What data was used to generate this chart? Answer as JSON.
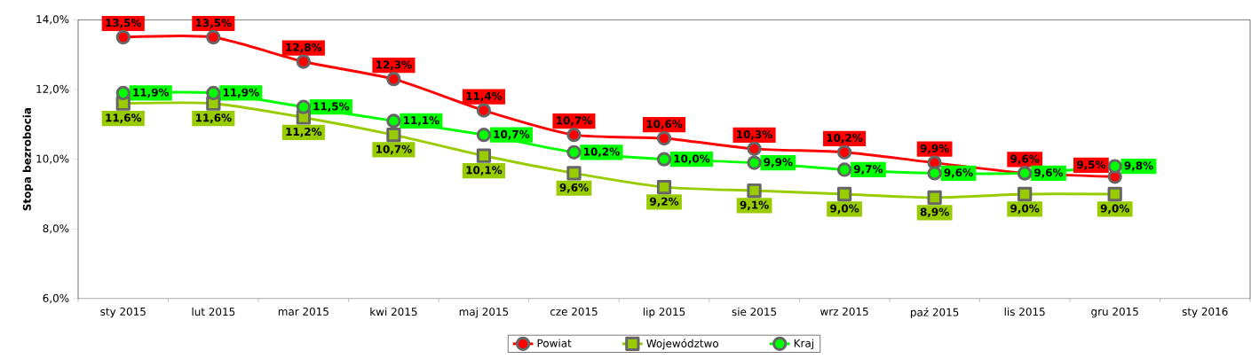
{
  "chart_data": {
    "type": "line",
    "ylabel": "Stopa bezrobocia",
    "legend": "bottom",
    "categories": [
      "sty 2015",
      "lut 2015",
      "mar 2015",
      "kwi 2015",
      "maj 2015",
      "cze 2015",
      "lip 2015",
      "sie 2015",
      "wrz 2015",
      "paź 2015",
      "lis 2015",
      "gru 2015",
      "sty 2016"
    ],
    "ylim": [
      6,
      14
    ],
    "yticks": [
      {
        "value": 6,
        "label": "6,0%"
      },
      {
        "value": 8,
        "label": "8,0%"
      },
      {
        "value": 10,
        "label": "10,0%"
      },
      {
        "value": 12,
        "label": "12,0%"
      },
      {
        "value": 14,
        "label": "14,0%"
      }
    ],
    "series": [
      {
        "name": "Powiat",
        "color": "#ff0000",
        "marker": "circle",
        "values": [
          13.5,
          13.5,
          12.8,
          12.3,
          11.4,
          10.7,
          10.6,
          10.3,
          10.2,
          9.9,
          9.6,
          9.5,
          null
        ],
        "value_labels": [
          "13,5%",
          "13,5%",
          "12,8%",
          "12,3%",
          "11,4%",
          "10,7%",
          "10,6%",
          "10,3%",
          "10,2%",
          "9,9%",
          "9,6%",
          "9,5%",
          null
        ]
      },
      {
        "name": "Województwo",
        "color": "#99cc00",
        "marker": "square",
        "values": [
          11.6,
          11.6,
          11.2,
          10.7,
          10.1,
          9.6,
          9.2,
          9.1,
          9.0,
          8.9,
          9.0,
          9.0,
          null
        ],
        "value_labels": [
          "11,6%",
          "11,6%",
          "11,2%",
          "10,7%",
          "10,1%",
          "9,6%",
          "9,2%",
          "9,1%",
          "9,0%",
          "8,9%",
          "9,0%",
          "9,0%",
          null
        ]
      },
      {
        "name": "Kraj",
        "color": "#00ff00",
        "marker": "circle",
        "values": [
          11.9,
          11.9,
          11.5,
          11.1,
          10.7,
          10.2,
          10.0,
          9.9,
          9.7,
          9.6,
          9.6,
          9.8,
          null
        ],
        "value_labels": [
          "11,9%",
          "11,9%",
          "11,5%",
          "11,1%",
          "10,7%",
          "10,2%",
          "10,0%",
          "9,9%",
          "9,7%",
          "9,6%",
          "9,6%",
          "9,8%",
          null
        ]
      }
    ]
  }
}
